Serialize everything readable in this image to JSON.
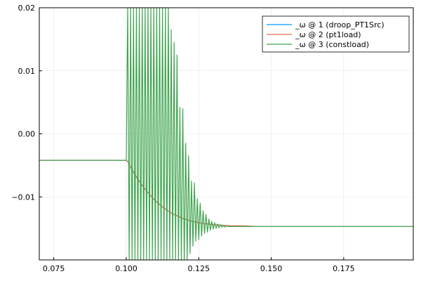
{
  "chart_data": {
    "type": "line",
    "title": "",
    "xlabel": "",
    "ylabel": "",
    "xlim": [
      0.07,
      0.199
    ],
    "ylim": [
      -0.02,
      0.02
    ],
    "x_ticks": [
      0.075,
      0.1,
      0.125,
      0.15,
      0.175
    ],
    "x_tick_labels": [
      "0.075",
      "0.100",
      "0.125",
      "0.150",
      "0.175"
    ],
    "y_ticks": [
      -0.01,
      0.0,
      0.01,
      0.02
    ],
    "y_tick_labels": [
      "−0.01",
      "0.00",
      "0.01",
      "0.02"
    ],
    "grid": true,
    "legend_position": "top-right",
    "series": [
      {
        "name": "_ω @ 1 (droop_PT1Src)",
        "color": "#009AFA",
        "x": [
          0.07,
          0.1,
          0.1005,
          0.102,
          0.104,
          0.106,
          0.108,
          0.11,
          0.112,
          0.114,
          0.116,
          0.118,
          0.12,
          0.122,
          0.124,
          0.126,
          0.128,
          0.13,
          0.133,
          0.136,
          0.14,
          0.145,
          0.15,
          0.16,
          0.175,
          0.199
        ],
        "y": [
          -0.0042,
          -0.0042,
          -0.0044,
          -0.0057,
          -0.0072,
          -0.0085,
          -0.0096,
          -0.0106,
          -0.0114,
          -0.0121,
          -0.0127,
          -0.0131,
          -0.0135,
          -0.0138,
          -0.014,
          -0.0142,
          -0.0143,
          -0.0144,
          -0.0145,
          -0.0146,
          -0.0146,
          -0.0147,
          -0.0147,
          -0.0147,
          -0.0147,
          -0.0147
        ]
      },
      {
        "name": "_ω @ 2 (pt1load)",
        "color": "#E36F47",
        "x": [
          0.07,
          0.1,
          0.1005,
          0.102,
          0.104,
          0.106,
          0.108,
          0.11,
          0.112,
          0.114,
          0.116,
          0.118,
          0.12,
          0.122,
          0.124,
          0.126,
          0.128,
          0.13,
          0.133,
          0.136,
          0.14,
          0.145,
          0.15,
          0.16,
          0.175,
          0.199
        ],
        "y": [
          -0.0042,
          -0.0042,
          -0.0044,
          -0.0057,
          -0.0072,
          -0.0085,
          -0.0096,
          -0.0106,
          -0.0114,
          -0.0121,
          -0.0127,
          -0.0131,
          -0.0135,
          -0.0138,
          -0.014,
          -0.0142,
          -0.0143,
          -0.0144,
          -0.0145,
          -0.0146,
          -0.0146,
          -0.0147,
          -0.0147,
          -0.0147,
          -0.0147,
          -0.0147
        ]
      },
      {
        "name": "_ω @ 3 (constload)",
        "color": "#3EA44E",
        "x": [
          0.07,
          0.1,
          0.1005,
          0.101,
          0.1015,
          0.102,
          0.1025,
          0.103,
          0.1035,
          0.104,
          0.1045,
          0.105,
          0.1055,
          0.106,
          0.1065,
          0.107,
          0.1075,
          0.108,
          0.1085,
          0.109,
          0.1095,
          0.11,
          0.1105,
          0.111,
          0.1115,
          0.112,
          0.1125,
          0.113,
          0.1135,
          0.114,
          0.1145,
          0.115,
          0.1155,
          0.116,
          0.1165,
          0.117,
          0.1175,
          0.118,
          0.1185,
          0.119,
          0.1195,
          0.12,
          0.1205,
          0.121,
          0.1215,
          0.122,
          0.1225,
          0.123,
          0.1235,
          0.124,
          0.1245,
          0.125,
          0.1255,
          0.126,
          0.1265,
          0.127,
          0.1275,
          0.128,
          0.1285,
          0.129,
          0.1295,
          0.13,
          0.1305,
          0.131,
          0.1315,
          0.132,
          0.1325,
          0.133,
          0.1335,
          0.134,
          0.1345,
          0.135,
          0.136,
          0.138,
          0.14,
          0.145,
          0.15,
          0.16,
          0.175,
          0.199
        ],
        "y": [
          -0.0042,
          -0.0042,
          0.02,
          -0.02,
          0.02,
          -0.02,
          0.02,
          -0.02,
          0.02,
          -0.02,
          0.02,
          -0.02,
          0.02,
          -0.02,
          0.02,
          -0.02,
          0.02,
          -0.02,
          0.02,
          -0.02,
          0.02,
          -0.02,
          0.02,
          -0.02,
          0.02,
          -0.02,
          0.02,
          -0.02,
          0.02,
          -0.02,
          0.02,
          -0.02,
          0.0165,
          -0.02,
          0.0145,
          -0.02,
          0.0125,
          -0.02,
          0.0042,
          -0.02,
          0.004,
          -0.0205,
          -0.0015,
          -0.02,
          -0.0035,
          -0.019,
          -0.0075,
          -0.0178,
          -0.0078,
          -0.017,
          -0.0103,
          -0.0168,
          -0.011,
          -0.0162,
          -0.0122,
          -0.0158,
          -0.0128,
          -0.0156,
          -0.0135,
          -0.0153,
          -0.0139,
          -0.0151,
          -0.0141,
          -0.015,
          -0.0143,
          -0.0149,
          -0.0144,
          -0.0148,
          -0.0145,
          -0.0148,
          -0.0146,
          -0.0147,
          -0.0147,
          -0.0147,
          -0.0147,
          -0.0147,
          -0.0147,
          -0.0147,
          -0.0147,
          -0.0147
        ]
      }
    ]
  }
}
